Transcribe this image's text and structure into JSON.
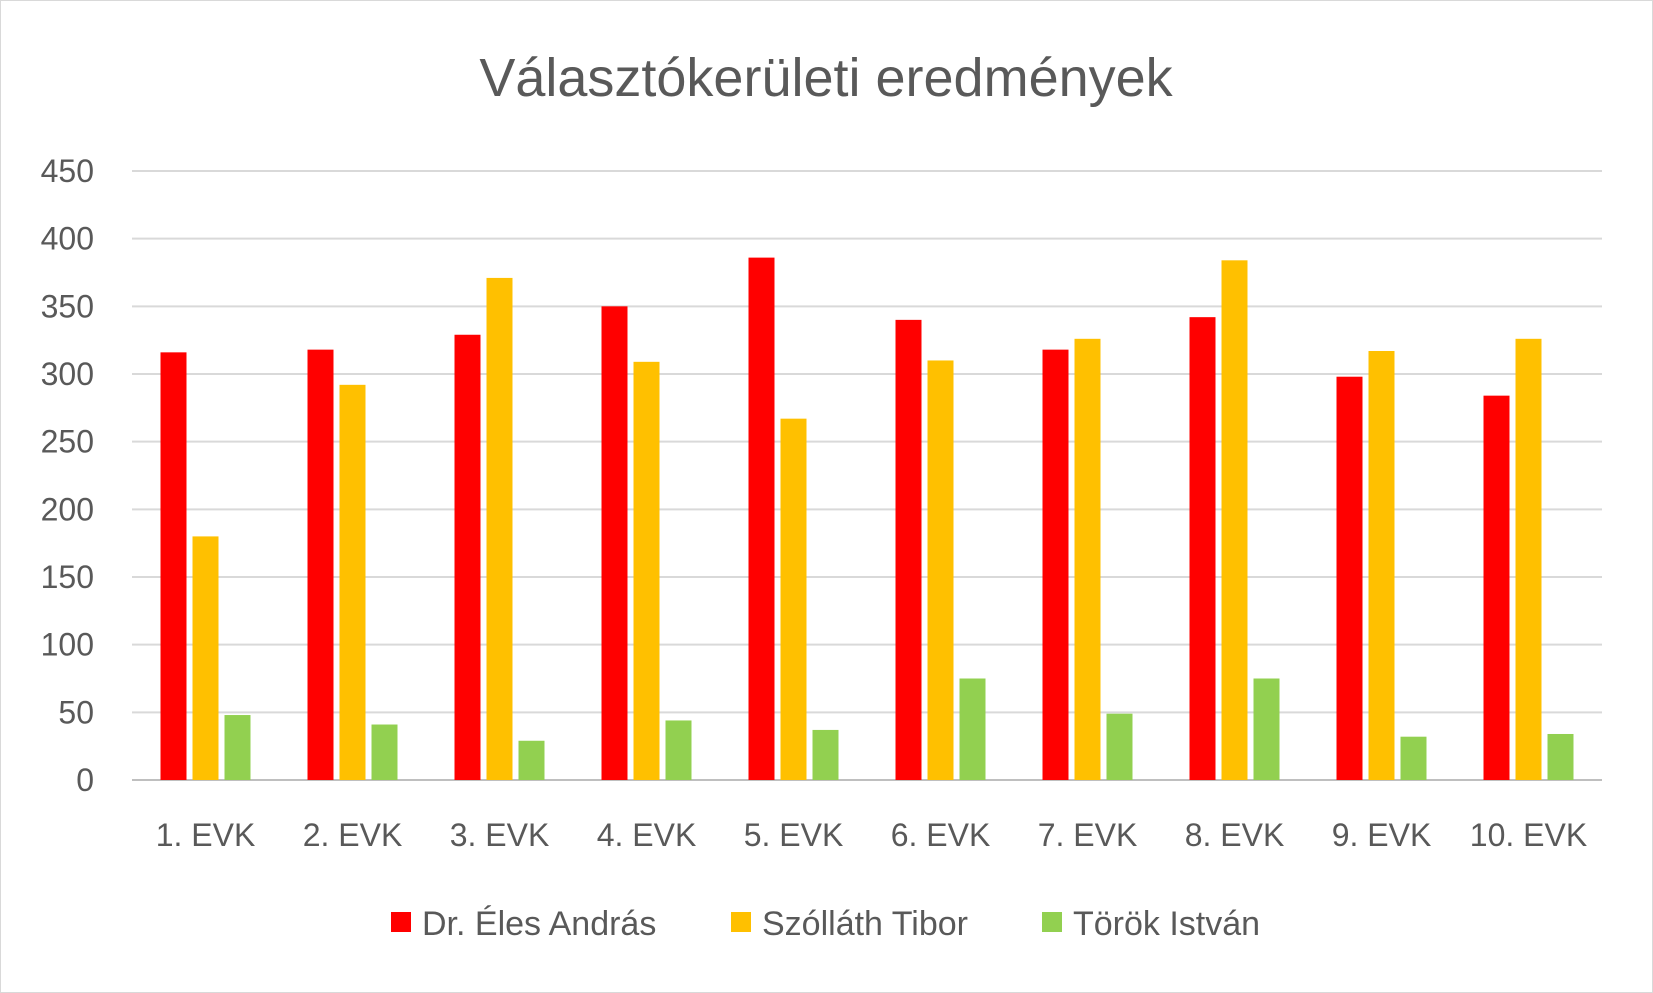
{
  "chart_data": {
    "type": "bar",
    "title": "Választókerületi eredmények",
    "xlabel": "",
    "ylabel": "",
    "ylim": [
      0,
      450
    ],
    "yticks": [
      0,
      50,
      100,
      150,
      200,
      250,
      300,
      350,
      400,
      450
    ],
    "grid": true,
    "legend_position": "bottom",
    "categories": [
      "1. EVK",
      "2. EVK",
      "3. EVK",
      "4. EVK",
      "5. EVK",
      "6. EVK",
      "7. EVK",
      "8. EVK",
      "9. EVK",
      "10. EVK"
    ],
    "series": [
      {
        "name": "Dr. Éles András",
        "color": "#ff0000",
        "values": [
          316,
          318,
          329,
          350,
          386,
          340,
          318,
          342,
          298,
          284
        ]
      },
      {
        "name": "Szólláth Tibor",
        "color": "#ffc000",
        "values": [
          180,
          292,
          371,
          309,
          267,
          310,
          326,
          384,
          317,
          326
        ]
      },
      {
        "name": "Török István",
        "color": "#92d050",
        "values": [
          48,
          41,
          29,
          44,
          37,
          75,
          49,
          75,
          32,
          34
        ]
      }
    ]
  }
}
